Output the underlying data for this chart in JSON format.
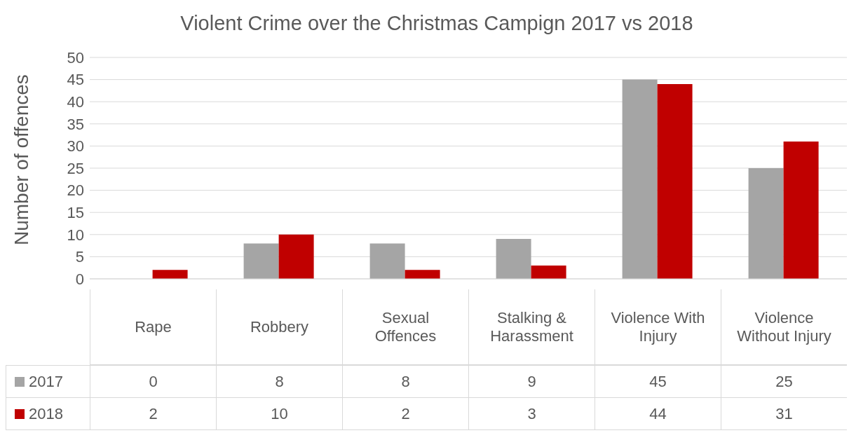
{
  "chart_data": {
    "type": "bar",
    "title": "Violent Crime over the Christmas Campign 2017 vs 2018",
    "ylabel": "Number of offences",
    "categories": [
      "Rape",
      "Robbery",
      "Sexual Offences",
      "Stalking & Harassment",
      "Violence With Injury",
      "Violence Without Injury"
    ],
    "series": [
      {
        "name": "2017",
        "color": "#a5a5a5",
        "values": [
          0,
          8,
          8,
          9,
          45,
          25
        ]
      },
      {
        "name": "2018",
        "color": "#c00000",
        "values": [
          2,
          10,
          2,
          3,
          44,
          31
        ]
      }
    ],
    "ylim": [
      0,
      50
    ],
    "yticks": [
      0,
      5,
      10,
      15,
      20,
      25,
      30,
      35,
      40,
      45,
      50
    ],
    "grid": "y",
    "legend": "bottom",
    "data_labels": true
  }
}
